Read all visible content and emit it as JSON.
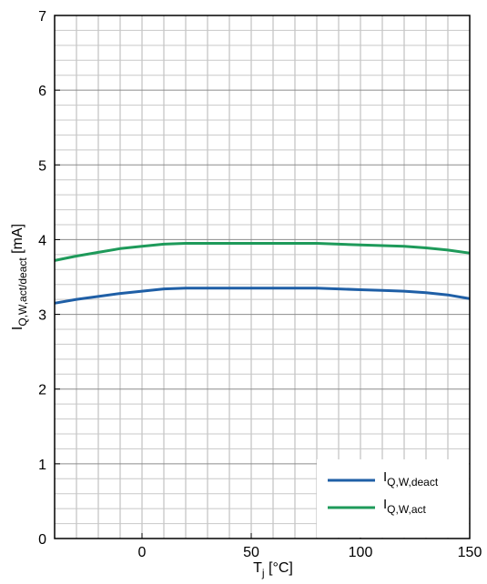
{
  "chart_data": {
    "type": "line",
    "xlim": [
      -40,
      150
    ],
    "ylim": [
      0,
      7
    ],
    "x_ticks": [
      0,
      50,
      100,
      150
    ],
    "x_tick_labels": [
      "0",
      "50",
      "100",
      "150"
    ],
    "y_ticks": [
      0,
      1,
      2,
      3,
      4,
      5,
      6,
      7
    ],
    "y_tick_labels": [
      "0",
      "1",
      "2",
      "3",
      "4",
      "5",
      "6",
      "7"
    ],
    "x_minor_step": 10,
    "y_minor_step": 0.2,
    "grid": true,
    "legend_position": "bottom-right",
    "xlabel": {
      "main": "T",
      "sub": "j",
      "unit": " [°C]"
    },
    "ylabel": {
      "main": "I",
      "sub": "Q,W,act/deact",
      "unit": " [mA]"
    },
    "series": [
      {
        "name": "Q,W,deact",
        "legend_main": "I",
        "legend_sub": "Q,W,deact",
        "color": "#1f5fa6",
        "x": [
          -40,
          -30,
          -20,
          -10,
          0,
          10,
          20,
          30,
          40,
          50,
          60,
          70,
          80,
          90,
          100,
          110,
          120,
          130,
          140,
          150
        ],
        "y": [
          3.15,
          3.2,
          3.24,
          3.28,
          3.31,
          3.34,
          3.35,
          3.35,
          3.35,
          3.35,
          3.35,
          3.35,
          3.35,
          3.34,
          3.33,
          3.32,
          3.31,
          3.29,
          3.26,
          3.21
        ]
      },
      {
        "name": "Q,W,act",
        "legend_main": "I",
        "legend_sub": "Q,W,act",
        "color": "#1e9a5a",
        "x": [
          -40,
          -30,
          -20,
          -10,
          0,
          10,
          20,
          30,
          40,
          50,
          60,
          70,
          80,
          90,
          100,
          110,
          120,
          130,
          140,
          150
        ],
        "y": [
          3.72,
          3.78,
          3.83,
          3.88,
          3.91,
          3.94,
          3.95,
          3.95,
          3.95,
          3.95,
          3.95,
          3.95,
          3.95,
          3.94,
          3.93,
          3.92,
          3.91,
          3.89,
          3.86,
          3.82
        ]
      }
    ]
  }
}
